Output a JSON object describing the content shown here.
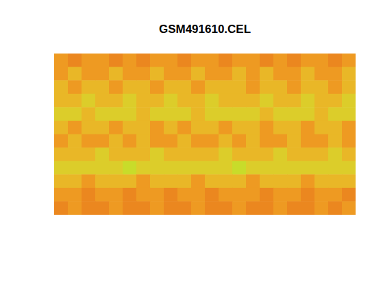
{
  "chart_data": {
    "type": "heatmap",
    "title": "GSM491610.CEL",
    "tick_labels": false,
    "zlim": [
      0,
      10
    ],
    "cells": [
      [
        5,
        4,
        5,
        5,
        4,
        5,
        4,
        5,
        5,
        4,
        5,
        5,
        4,
        5,
        5,
        4,
        5,
        4,
        5,
        5,
        4,
        5
      ],
      [
        5,
        6,
        5,
        5,
        6,
        5,
        5,
        6,
        5,
        5,
        6,
        5,
        5,
        6,
        5,
        6,
        5,
        5,
        6,
        5,
        5,
        6
      ],
      [
        6,
        5,
        6,
        6,
        5,
        6,
        6,
        5,
        6,
        6,
        5,
        6,
        6,
        6,
        5,
        6,
        6,
        5,
        6,
        6,
        5,
        6
      ],
      [
        6,
        6,
        7,
        6,
        6,
        7,
        6,
        6,
        7,
        6,
        6,
        7,
        6,
        6,
        6,
        7,
        6,
        6,
        7,
        6,
        6,
        7
      ],
      [
        7,
        7,
        6,
        7,
        7,
        7,
        6,
        7,
        7,
        7,
        6,
        7,
        7,
        7,
        7,
        6,
        7,
        7,
        7,
        6,
        7,
        7
      ],
      [
        6,
        5,
        6,
        6,
        5,
        6,
        6,
        5,
        6,
        5,
        6,
        6,
        5,
        6,
        6,
        5,
        6,
        6,
        5,
        6,
        6,
        5
      ],
      [
        5,
        6,
        5,
        5,
        6,
        5,
        6,
        5,
        5,
        6,
        5,
        5,
        6,
        5,
        6,
        5,
        5,
        6,
        5,
        5,
        6,
        5
      ],
      [
        6,
        6,
        6,
        7,
        6,
        6,
        6,
        7,
        6,
        6,
        6,
        6,
        7,
        6,
        6,
        6,
        7,
        6,
        6,
        6,
        7,
        6
      ],
      [
        7,
        7,
        7,
        7,
        7,
        8,
        7,
        7,
        7,
        7,
        7,
        7,
        7,
        8,
        7,
        7,
        7,
        7,
        7,
        7,
        7,
        7
      ],
      [
        6,
        6,
        5,
        6,
        6,
        6,
        5,
        6,
        6,
        6,
        5,
        6,
        6,
        6,
        5,
        6,
        6,
        6,
        5,
        6,
        6,
        6
      ],
      [
        5,
        5,
        4,
        5,
        5,
        4,
        5,
        5,
        4,
        5,
        5,
        4,
        5,
        5,
        5,
        4,
        5,
        5,
        4,
        5,
        5,
        4
      ],
      [
        4,
        5,
        4,
        4,
        5,
        4,
        4,
        5,
        4,
        4,
        5,
        4,
        4,
        5,
        4,
        4,
        5,
        4,
        4,
        5,
        4,
        5
      ]
    ]
  }
}
